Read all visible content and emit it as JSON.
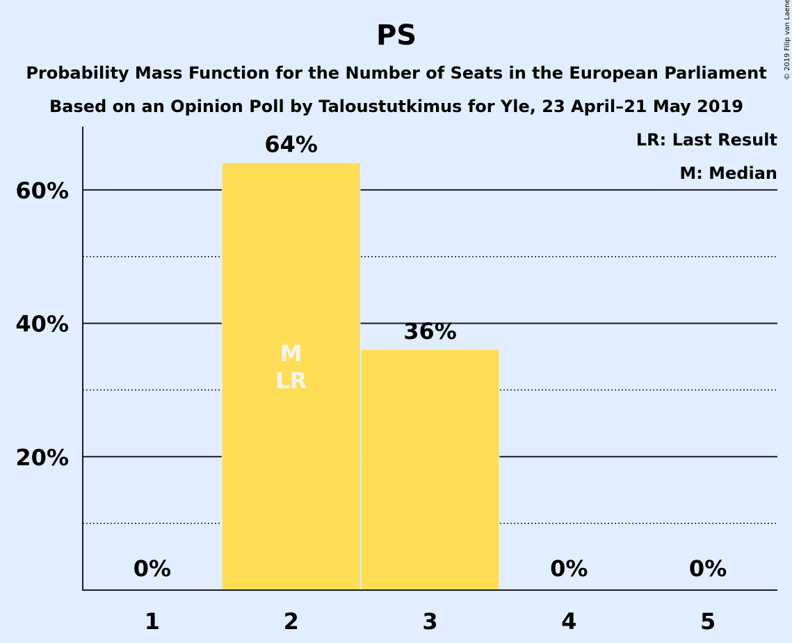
{
  "chart_data": {
    "type": "bar",
    "title": "PS",
    "subtitle": "Probability Mass Function for the Number of Seats in the European Parliament",
    "subtitle2": "Based on an Opinion Poll by Taloustutkimus for Yle, 23 April–21 May 2019",
    "categories": [
      "1",
      "2",
      "3",
      "4",
      "5"
    ],
    "values": [
      0,
      64,
      36,
      0,
      0
    ],
    "value_labels": [
      "0%",
      "64%",
      "36%",
      "0%",
      "0%"
    ],
    "ylim": [
      0,
      70
    ],
    "yticks": [
      20,
      40,
      60
    ],
    "ytick_labels": [
      "20%",
      "40%",
      "60%"
    ],
    "minor_gridlines": [
      10,
      30,
      50
    ],
    "bar_color": "#FFDD55",
    "median_category": "2",
    "last_result_category": "2",
    "median_marker": "M",
    "last_result_marker": "LR",
    "legend": [
      "LR: Last Result",
      "M: Median"
    ],
    "legend_position": "top-right",
    "copyright": "© 2019 Filip van Laenen"
  }
}
